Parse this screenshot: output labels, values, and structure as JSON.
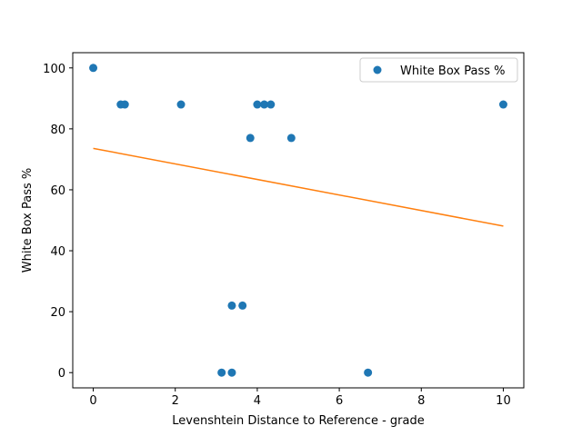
{
  "chart_data": {
    "type": "scatter",
    "xlabel": "Levenshtein Distance to Reference - grade",
    "ylabel": "White Box Pass %",
    "xlim": [
      -0.5,
      10.5
    ],
    "ylim": [
      -5,
      105
    ],
    "x_ticks": [
      0,
      2,
      4,
      6,
      8,
      10
    ],
    "y_ticks": [
      0,
      20,
      40,
      60,
      80,
      100
    ],
    "grid": false,
    "legend_position": "top-right",
    "series": [
      {
        "name": "White Box Pass %",
        "kind": "points",
        "color": "#1f77b4",
        "points": [
          {
            "x": 0,
            "y": 100
          },
          {
            "x": 0.67,
            "y": 88
          },
          {
            "x": 0.77,
            "y": 88
          },
          {
            "x": 2.14,
            "y": 88
          },
          {
            "x": 3.83,
            "y": 77
          },
          {
            "x": 4.0,
            "y": 88
          },
          {
            "x": 4.17,
            "y": 88
          },
          {
            "x": 4.33,
            "y": 88
          },
          {
            "x": 4.83,
            "y": 77
          },
          {
            "x": 10.0,
            "y": 88
          },
          {
            "x": 3.38,
            "y": 22
          },
          {
            "x": 3.64,
            "y": 22
          },
          {
            "x": 3.13,
            "y": 0
          },
          {
            "x": 3.38,
            "y": 0
          },
          {
            "x": 6.7,
            "y": 0
          }
        ]
      },
      {
        "kind": "trendline",
        "color": "#ff7f0e",
        "points": [
          {
            "x": 0,
            "y": 73.6
          },
          {
            "x": 10,
            "y": 48.1
          }
        ]
      }
    ]
  }
}
